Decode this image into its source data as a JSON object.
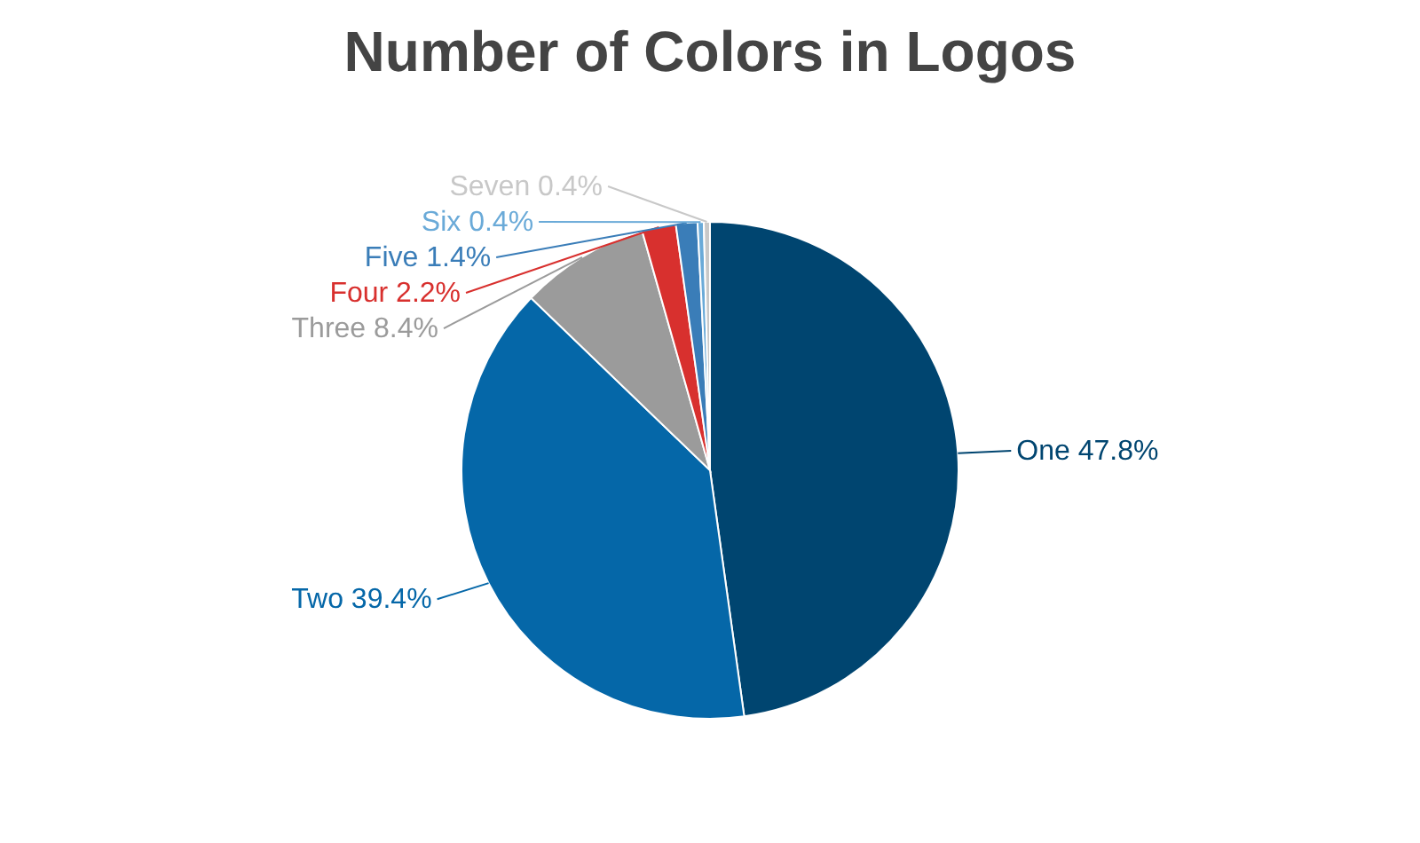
{
  "chart_data": {
    "type": "pie",
    "title": "Number of Colors in Logos",
    "categories": [
      "One",
      "Two",
      "Three",
      "Four",
      "Five",
      "Six",
      "Seven"
    ],
    "values": [
      47.8,
      39.4,
      8.4,
      2.2,
      1.4,
      0.4,
      0.4
    ],
    "value_labels": [
      "47.8%",
      "39.4%",
      "8.4%",
      "2.2%",
      "1.4%",
      "0.4%",
      "0.4%"
    ],
    "colors": [
      "#004570",
      "#0567a8",
      "#9b9b9b",
      "#d8302e",
      "#3a7db8",
      "#6aaad8",
      "#c8c8c8"
    ]
  }
}
